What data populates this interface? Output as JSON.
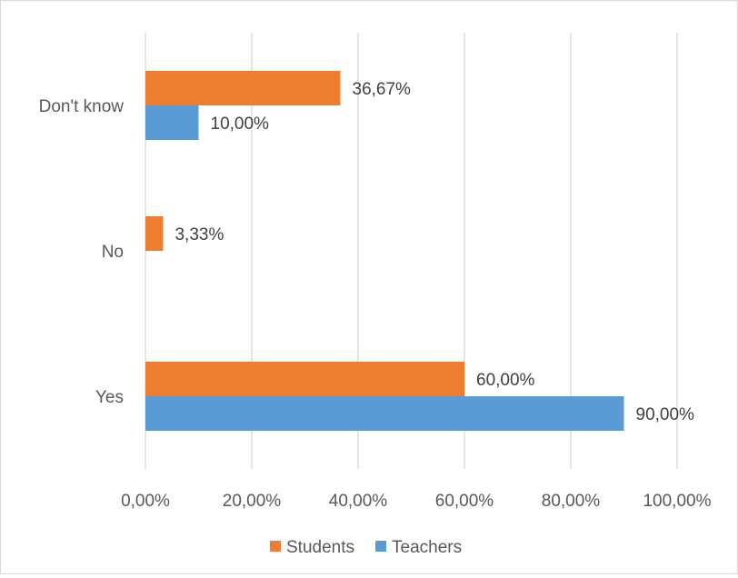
{
  "chart_data": {
    "type": "bar",
    "orientation": "horizontal",
    "categories": [
      "Don't know",
      "No",
      "Yes"
    ],
    "series": [
      {
        "name": "Students",
        "color": "#ED7D31",
        "values": [
          36.67,
          3.33,
          60.0
        ],
        "labels": [
          "36,67%",
          "3,33%",
          "60,00%"
        ]
      },
      {
        "name": "Teachers",
        "color": "#5B9BD5",
        "values": [
          10.0,
          null,
          90.0
        ],
        "labels": [
          "10,00%",
          "",
          "90,00%"
        ]
      }
    ],
    "xticks": [
      0,
      20,
      40,
      60,
      80,
      100
    ],
    "xtick_labels": [
      "0,00%",
      "20,00%",
      "40,00%",
      "60,00%",
      "80,00%",
      "100,00%"
    ],
    "xlim": [
      0,
      100
    ],
    "title": "",
    "xlabel": "",
    "ylabel": "",
    "grid": "vertical",
    "legend": "bottom"
  }
}
